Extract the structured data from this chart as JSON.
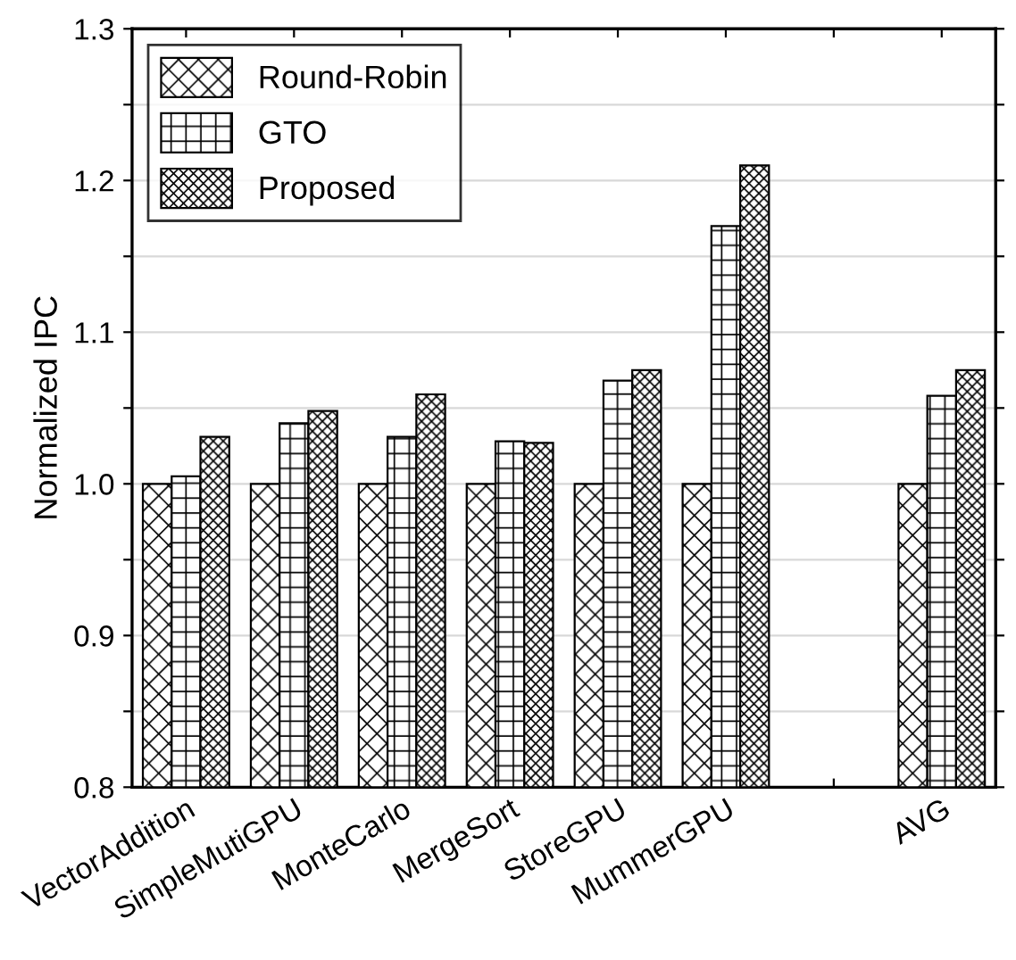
{
  "chart_data": {
    "type": "bar",
    "ylabel": "Normalized IPC",
    "categories": [
      "VectorAddition",
      "SimpleMutiGPU",
      "MonteCarlo",
      "MergeSort",
      "StoreGPU",
      "MummerGPU",
      null,
      "AVG"
    ],
    "series": [
      {
        "name": "Round-Robin",
        "color": "#000000",
        "values": [
          1.0,
          1.0,
          1.0,
          1.0,
          1.0,
          1.0,
          null,
          1.0
        ]
      },
      {
        "name": "GTO",
        "color": "#000000",
        "values": [
          1.005,
          1.04,
          1.031,
          1.028,
          1.068,
          1.17,
          null,
          1.058
        ]
      },
      {
        "name": "Proposed",
        "color": "#000000",
        "values": [
          1.031,
          1.048,
          1.059,
          1.027,
          1.075,
          1.21,
          null,
          1.075
        ]
      }
    ],
    "ylim": [
      0.8,
      1.3
    ],
    "yticks": [
      0.8,
      {
        "value": 0.85,
        "label": null
      },
      0.9,
      {
        "value": 0.95,
        "label": null
      },
      {
        "value": 1.0,
        "label": "1.0"
      },
      {
        "value": 1.05,
        "label": null
      },
      1.1,
      {
        "value": 1.15,
        "label": null
      },
      1.2,
      {
        "value": 1.25,
        "label": null
      },
      1.3
    ],
    "grid": "y",
    "legend": "top left"
  }
}
